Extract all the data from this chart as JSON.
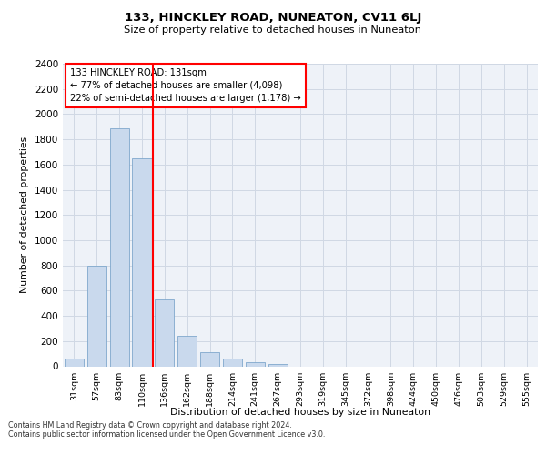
{
  "title": "133, HINCKLEY ROAD, NUNEATON, CV11 6LJ",
  "subtitle": "Size of property relative to detached houses in Nuneaton",
  "xlabel": "Distribution of detached houses by size in Nuneaton",
  "ylabel": "Number of detached properties",
  "categories": [
    "31sqm",
    "57sqm",
    "83sqm",
    "110sqm",
    "136sqm",
    "162sqm",
    "188sqm",
    "214sqm",
    "241sqm",
    "267sqm",
    "293sqm",
    "319sqm",
    "345sqm",
    "372sqm",
    "398sqm",
    "424sqm",
    "450sqm",
    "476sqm",
    "503sqm",
    "529sqm",
    "555sqm"
  ],
  "values": [
    60,
    800,
    1890,
    1650,
    530,
    245,
    110,
    60,
    35,
    20,
    0,
    0,
    0,
    0,
    0,
    0,
    0,
    0,
    0,
    0,
    0
  ],
  "bar_color": "#c9d9ed",
  "bar_edge_color": "#7fa8cc",
  "grid_color": "#d0d8e4",
  "background_color": "#eef2f8",
  "annotation_line1": "133 HINCKLEY ROAD: 131sqm",
  "annotation_line2": "← 77% of detached houses are smaller (4,098)",
  "annotation_line3": "22% of semi-detached houses are larger (1,178) →",
  "vline_color": "red",
  "ylim": [
    0,
    2400
  ],
  "yticks": [
    0,
    200,
    400,
    600,
    800,
    1000,
    1200,
    1400,
    1600,
    1800,
    2000,
    2200,
    2400
  ],
  "footer_line1": "Contains HM Land Registry data © Crown copyright and database right 2024.",
  "footer_line2": "Contains public sector information licensed under the Open Government Licence v3.0."
}
